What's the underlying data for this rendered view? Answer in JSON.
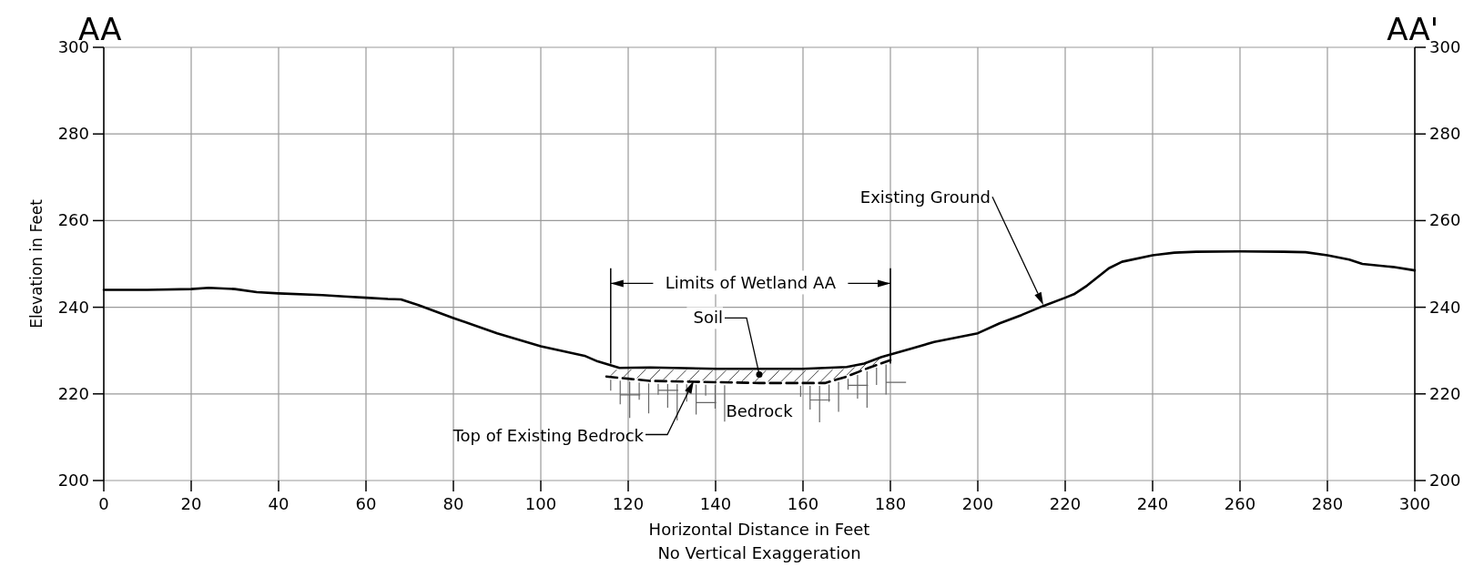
{
  "chart_data": {
    "type": "line",
    "xlabel": "Horizontal Distance in Feet",
    "ylabel": "Elevation in Feet",
    "xlim": [
      0,
      300
    ],
    "xticks": [
      0,
      20,
      40,
      60,
      80,
      100,
      120,
      140,
      160,
      180,
      200,
      220,
      240,
      260,
      280,
      300
    ],
    "ylim": [
      200,
      300
    ],
    "yticks": [
      200,
      220,
      240,
      260,
      280,
      300
    ],
    "y2lim": [
      200,
      300
    ],
    "y2ticks": [
      200,
      220,
      240,
      260,
      280,
      300
    ],
    "grid": true,
    "marker": "none",
    "series": [
      {
        "color": "#000000",
        "line_style": "solid",
        "x": [
          0,
          10,
          20,
          24,
          30,
          35,
          40,
          50,
          55,
          60,
          65,
          68,
          72,
          80,
          90,
          100,
          110,
          113,
          118,
          125,
          140,
          160,
          170,
          174,
          178,
          185,
          190,
          195,
          200,
          205,
          210,
          215,
          220,
          222,
          225,
          230,
          233,
          240,
          245,
          250,
          260,
          270,
          275,
          280,
          285,
          288,
          295,
          300
        ],
        "values": [
          244,
          244,
          244.2,
          244.5,
          244.2,
          243.5,
          243.2,
          242.8,
          242.5,
          242.2,
          241.9,
          241.8,
          240.5,
          237.5,
          234,
          231,
          228.8,
          227.5,
          226,
          226.1,
          225.8,
          225.8,
          226.2,
          227,
          228.5,
          230.5,
          232,
          233,
          234,
          236.3,
          238.2,
          240.3,
          242.2,
          243,
          245,
          249,
          250.5,
          252,
          252.6,
          252.8,
          252.9,
          252.8,
          252.7,
          252,
          251,
          250,
          249.3,
          248.5
        ]
      },
      {
        "color": "#000000",
        "line_style": "dashed",
        "x": [
          115,
          120,
          125,
          135,
          150,
          165,
          170,
          175,
          180
        ],
        "values": [
          224,
          223.5,
          223,
          222.8,
          222.5,
          222.5,
          224,
          226,
          227.8
        ]
      }
    ],
    "ref_lines": [
      {
        "axis": "x",
        "value": 116,
        "label": "Limits of Wetland AA"
      },
      {
        "axis": "x",
        "value": 180
      }
    ],
    "annotations": [
      "AA",
      "AA'",
      "Existing Ground",
      {
        "text": "Soil",
        "x": 150,
        "y": 224.5
      },
      "Top of Existing Bedrock",
      "Bedrock",
      "No Vertical Exaggeration"
    ]
  }
}
